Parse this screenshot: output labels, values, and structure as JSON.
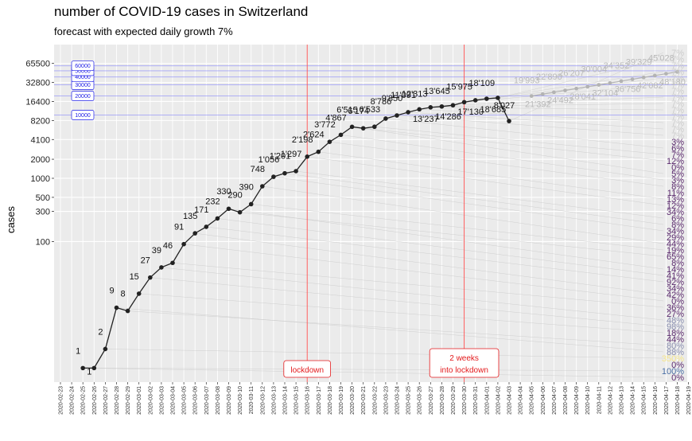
{
  "chart_data": {
    "type": "line",
    "title": "number of COVID-19 cases in Switzerland",
    "subtitle": "forecast with expected daily growth 7%",
    "xlabel": "",
    "ylabel": "cases",
    "y_scale": "log",
    "y_ticks": [
      100,
      300,
      500,
      1000,
      2000,
      4100,
      8200,
      16400,
      32800,
      65500
    ],
    "x_ticks": [
      "2020-02-23",
      "2020-02-24",
      "2020-02-25",
      "2020-02-26",
      "2020-02-27",
      "2020-02-28",
      "2020-02-29",
      "2020-03-01",
      "2020-03-02",
      "2020-03-03",
      "2020-03-04",
      "2020-03-05",
      "2020-03-06",
      "2020-03-07",
      "2020-03-08",
      "2020-03-09",
      "2020-03-10",
      "2020-03-11",
      "2020-03-12",
      "2020-03-13",
      "2020-03-14",
      "2020-03-15",
      "2020-03-16",
      "2020-03-17",
      "2020-03-18",
      "2020-03-19",
      "2020-03-20",
      "2020-03-21",
      "2020-03-22",
      "2020-03-23",
      "2020-03-24",
      "2020-03-25",
      "2020-03-26",
      "2020-03-27",
      "2020-03-28",
      "2020-03-29",
      "2020-03-30",
      "2020-03-31",
      "2020-04-01",
      "2020-04-02",
      "2020-04-03",
      "2020-04-04",
      "2020-04-05",
      "2020-04-06",
      "2020-04-07",
      "2020-04-08",
      "2020-04-09",
      "2020-04-10",
      "2020-04-11",
      "2020-04-12",
      "2020-04-13",
      "2020-04-14",
      "2020-04-15",
      "2020-04-16",
      "2020-04-17",
      "2020-04-18",
      "2020-04-19"
    ],
    "series": [
      {
        "name": "",
        "color": "#222222",
        "points": [
          {
            "x": "2020-02-25",
            "y": 1,
            "label": "1"
          },
          {
            "x": "2020-02-26",
            "y": 1,
            "label": "1"
          },
          {
            "x": "2020-02-27",
            "y": 2,
            "label": "2"
          },
          {
            "x": "2020-02-28",
            "y": 9,
            "label": "9"
          },
          {
            "x": "2020-02-29",
            "y": 8,
            "label": "8"
          },
          {
            "x": "2020-03-01",
            "y": 15,
            "label": "15"
          },
          {
            "x": "2020-03-02",
            "y": 27,
            "label": "27"
          },
          {
            "x": "2020-03-03",
            "y": 39,
            "label": "39"
          },
          {
            "x": "2020-03-04",
            "y": 46,
            "label": "46"
          },
          {
            "x": "2020-03-05",
            "y": 91,
            "label": "91"
          },
          {
            "x": "2020-03-06",
            "y": 135,
            "label": "135"
          },
          {
            "x": "2020-03-07",
            "y": 171,
            "label": "171"
          },
          {
            "x": "2020-03-08",
            "y": 232,
            "label": "232"
          },
          {
            "x": "2020-03-09",
            "y": 330,
            "label": "330"
          },
          {
            "x": "2020-03-10",
            "y": 290,
            "label": "290"
          },
          {
            "x": "2020-03-11",
            "y": 390,
            "label": "390"
          },
          {
            "x": "2020-03-12",
            "y": 748,
            "label": "748"
          },
          {
            "x": "2020-03-13",
            "y": 1056,
            "label": "1'056"
          },
          {
            "x": "2020-03-14",
            "y": 1201,
            "label": "1'201"
          },
          {
            "x": "2020-03-15",
            "y": 1297,
            "label": "1'297"
          },
          {
            "x": "2020-03-16",
            "y": 2198,
            "label": "2'198"
          },
          {
            "x": "2020-03-17",
            "y": 2624,
            "label": "2'624"
          },
          {
            "x": "2020-03-18",
            "y": 3772,
            "label": "3'772"
          },
          {
            "x": "2020-03-19",
            "y": 4867,
            "label": "4'867"
          },
          {
            "x": "2020-03-20",
            "y": 6515,
            "label": "6'515"
          },
          {
            "x": "2020-03-21",
            "y": 6174,
            "label": "6'174"
          },
          {
            "x": "2020-03-22",
            "y": 6533,
            "label": "6'533"
          },
          {
            "x": "2020-03-23",
            "y": 8786,
            "label": "8'786"
          },
          {
            "x": "2020-03-24",
            "y": 9850,
            "label": "9'850"
          },
          {
            "x": "2020-03-25",
            "y": 11091,
            "label": "11'091"
          },
          {
            "x": "2020-03-26",
            "y": 12313,
            "label": "12'313"
          },
          {
            "x": "2020-03-27",
            "y": 13237,
            "label": "13'237"
          },
          {
            "x": "2020-03-28",
            "y": 13645,
            "label": "13'645"
          },
          {
            "x": "2020-03-29",
            "y": 14286,
            "label": "14'286"
          },
          {
            "x": "2020-03-30",
            "y": 15975,
            "label": "15'975"
          },
          {
            "x": "2020-03-31",
            "y": 17130,
            "label": "17'130"
          },
          {
            "x": "2020-04-01",
            "y": 18109,
            "label": "18'109"
          },
          {
            "x": "2020-04-02",
            "y": 18685,
            "label": "18'685"
          },
          {
            "x": "2020-04-03",
            "y": 8027,
            "label": "8'027"
          }
        ]
      },
      {
        "name": "",
        "color": "#b3b3b3",
        "points": [
          {
            "x": "2020-04-05",
            "y": 19993,
            "label": "19'993"
          },
          {
            "x": "2020-04-06",
            "y": 21392,
            "label": "21'392"
          },
          {
            "x": "2020-04-07",
            "y": 22890,
            "label": "22'890"
          },
          {
            "x": "2020-04-08",
            "y": 24492,
            "label": "24'492"
          },
          {
            "x": "2020-04-09",
            "y": 26207,
            "label": "26'207"
          },
          {
            "x": "2020-04-10",
            "y": 28041,
            "label": "28'041"
          },
          {
            "x": "2020-04-11",
            "y": 30004,
            "label": "30'004"
          },
          {
            "x": "2020-04-12",
            "y": 32104,
            "label": "32'104"
          },
          {
            "x": "2020-04-13",
            "y": 34352,
            "label": "34'352"
          },
          {
            "x": "2020-04-14",
            "y": 36756,
            "label": "36'756"
          },
          {
            "x": "2020-04-15",
            "y": 39329,
            "label": "39'329"
          },
          {
            "x": "2020-04-16",
            "y": 42082,
            "label": "42'082"
          },
          {
            "x": "2020-04-17",
            "y": 45028,
            "label": "45'028"
          },
          {
            "x": "2020-04-18",
            "y": 48180,
            "label": "48'180"
          }
        ]
      }
    ],
    "hlines": [
      {
        "y": 10000,
        "label": "10000"
      },
      {
        "y": 20000,
        "label": "20000"
      },
      {
        "y": 30000,
        "label": "30000"
      },
      {
        "y": 40000,
        "label": "40000"
      },
      {
        "y": 50000,
        "label": "50000"
      },
      {
        "y": 60000,
        "label": "60000"
      }
    ],
    "vlines": [
      {
        "x": "2020-03-16",
        "label": "lockdown"
      },
      {
        "x": "2020-03-30",
        "label": "2 weeks into lockdown"
      }
    ],
    "growth_labels": [
      {
        "text": "7%",
        "color": "#cccccc"
      },
      {
        "text": "7%",
        "color": "#cccccc"
      },
      {
        "text": "7%",
        "color": "#cccccc"
      },
      {
        "text": "7%",
        "color": "#cccccc"
      },
      {
        "text": "7%",
        "color": "#cccccc"
      },
      {
        "text": "7%",
        "color": "#cccccc"
      },
      {
        "text": "7%",
        "color": "#cccccc"
      },
      {
        "text": "7%",
        "color": "#cccccc"
      },
      {
        "text": "7%",
        "color": "#cccccc"
      },
      {
        "text": "7%",
        "color": "#cccccc"
      },
      {
        "text": "7%",
        "color": "#cccccc"
      },
      {
        "text": "7%",
        "color": "#cccccc"
      },
      {
        "text": "7%",
        "color": "#cccccc"
      },
      {
        "text": "7%",
        "color": "#cccccc"
      },
      {
        "text": "3%",
        "color": "#5b2a6e"
      },
      {
        "text": "6%",
        "color": "#5b2a6e"
      },
      {
        "text": "7%",
        "color": "#5b2a6e"
      },
      {
        "text": "12%",
        "color": "#5b2a6e"
      },
      {
        "text": "0%",
        "color": "#5b2a6e"
      },
      {
        "text": "5%",
        "color": "#5b2a6e"
      },
      {
        "text": "3%",
        "color": "#5b2a6e"
      },
      {
        "text": "8%",
        "color": "#5b2a6e"
      },
      {
        "text": "11%",
        "color": "#5b2a6e"
      },
      {
        "text": "13%",
        "color": "#5b2a6e"
      },
      {
        "text": "12%",
        "color": "#5b2a6e"
      },
      {
        "text": "34%",
        "color": "#5b2a6e"
      },
      {
        "text": "6%",
        "color": "#5b2a6e"
      },
      {
        "text": "8%",
        "color": "#5b2a6e"
      },
      {
        "text": "34%",
        "color": "#5b2a6e"
      },
      {
        "text": "29%",
        "color": "#5b2a6e"
      },
      {
        "text": "44%",
        "color": "#5b2a6e"
      },
      {
        "text": "19%",
        "color": "#5b2a6e"
      },
      {
        "text": "65%",
        "color": "#5b2a6e"
      },
      {
        "text": "8%",
        "color": "#5b2a6e"
      },
      {
        "text": "14%",
        "color": "#5b2a6e"
      },
      {
        "text": "41%",
        "color": "#5b2a6e"
      },
      {
        "text": "92%",
        "color": "#5b2a6e"
      },
      {
        "text": "34%",
        "color": "#5b2a6e"
      },
      {
        "text": "42%",
        "color": "#5b2a6e"
      },
      {
        "text": "0%",
        "color": "#5b2a6e"
      },
      {
        "text": "36%",
        "color": "#5b2a6e"
      },
      {
        "text": "27%",
        "color": "#5b2a6e"
      },
      {
        "text": "48%",
        "color": "#8a8fb0"
      },
      {
        "text": "98%",
        "color": "#8a8fb0"
      },
      {
        "text": "18%",
        "color": "#5b2a6e"
      },
      {
        "text": "44%",
        "color": "#5b2a6e"
      },
      {
        "text": "80%",
        "color": "#8a8fb0"
      },
      {
        "text": "88%",
        "color": "#8a8fb0"
      },
      {
        "text": "350%",
        "color": "#f5e58a"
      },
      {
        "text": "0%",
        "color": "#5b2a6e"
      },
      {
        "text": "100%",
        "color": "#4a6fa5"
      },
      {
        "text": "0%",
        "color": "#5b2a6e"
      }
    ]
  }
}
